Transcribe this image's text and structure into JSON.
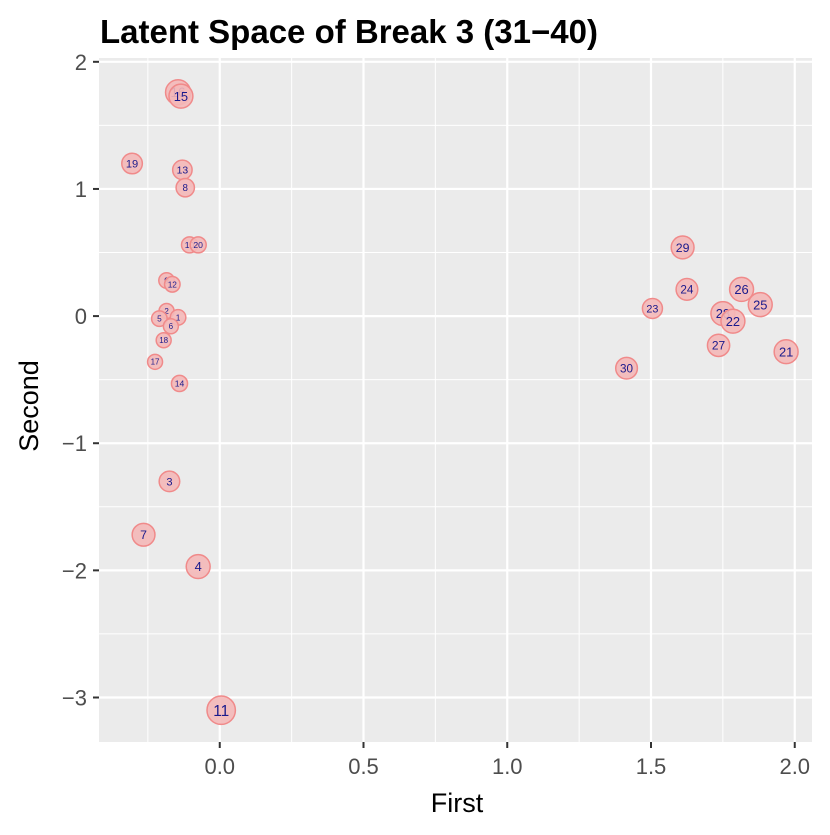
{
  "chart_data": {
    "type": "scatter",
    "title": "Latent Space of Break 3 (31−40)",
    "xlabel": "First",
    "ylabel": "Second",
    "xlim": [
      -0.42,
      2.06
    ],
    "ylim": [
      -3.35,
      2.03
    ],
    "x_ticks": [
      {
        "value": 0.0,
        "label": "0.0"
      },
      {
        "value": 0.5,
        "label": "0.5"
      },
      {
        "value": 1.0,
        "label": "1.0"
      },
      {
        "value": 1.5,
        "label": "1.5"
      },
      {
        "value": 2.0,
        "label": "2.0"
      }
    ],
    "y_ticks": [
      {
        "value": 2,
        "label": "2"
      },
      {
        "value": 1,
        "label": "1"
      },
      {
        "value": 0,
        "label": "0"
      },
      {
        "value": -1,
        "label": "−1"
      },
      {
        "value": -2,
        "label": "−2"
      },
      {
        "value": -3,
        "label": "−3"
      }
    ],
    "grid": true,
    "colors": {
      "panel": "#ebebeb",
      "grid_major": "#ffffff",
      "point_fill": "#f4b8b8",
      "point_stroke": "#f08a8a",
      "label": "#1a1a8c",
      "axis_text": "#4d4d4d",
      "title": "#000000"
    },
    "points": [
      {
        "label": "16",
        "x": -0.145,
        "y": 1.76,
        "size": 1.7
      },
      {
        "label": "15",
        "x": -0.135,
        "y": 1.73,
        "size": 1.6
      },
      {
        "label": "19",
        "x": -0.305,
        "y": 1.2,
        "size": 1.3
      },
      {
        "label": "13",
        "x": -0.13,
        "y": 1.15,
        "size": 1.2
      },
      {
        "label": "8",
        "x": -0.12,
        "y": 1.01,
        "size": 1.1
      },
      {
        "label": "10",
        "x": -0.105,
        "y": 0.56,
        "size": 0.9
      },
      {
        "label": "20",
        "x": -0.075,
        "y": 0.56,
        "size": 0.9
      },
      {
        "label": "9",
        "x": -0.185,
        "y": 0.28,
        "size": 0.85
      },
      {
        "label": "12",
        "x": -0.165,
        "y": 0.25,
        "size": 0.85
      },
      {
        "label": "2",
        "x": -0.185,
        "y": 0.04,
        "size": 0.8
      },
      {
        "label": "1",
        "x": -0.145,
        "y": -0.01,
        "size": 0.85
      },
      {
        "label": "5",
        "x": -0.21,
        "y": -0.02,
        "size": 0.85
      },
      {
        "label": "6",
        "x": -0.17,
        "y": -0.08,
        "size": 0.8
      },
      {
        "label": "18",
        "x": -0.195,
        "y": -0.19,
        "size": 0.8
      },
      {
        "label": "17",
        "x": -0.225,
        "y": -0.36,
        "size": 0.8
      },
      {
        "label": "14",
        "x": -0.14,
        "y": -0.53,
        "size": 0.9
      },
      {
        "label": "3",
        "x": -0.175,
        "y": -1.3,
        "size": 1.3
      },
      {
        "label": "7",
        "x": -0.265,
        "y": -1.72,
        "size": 1.5
      },
      {
        "label": "4",
        "x": -0.075,
        "y": -1.97,
        "size": 1.6
      },
      {
        "label": "11",
        "x": 0.005,
        "y": -3.1,
        "size": 2.0
      },
      {
        "label": "29",
        "x": 1.61,
        "y": 0.54,
        "size": 1.5
      },
      {
        "label": "24",
        "x": 1.625,
        "y": 0.21,
        "size": 1.4
      },
      {
        "label": "26",
        "x": 1.815,
        "y": 0.21,
        "size": 1.6
      },
      {
        "label": "25",
        "x": 1.88,
        "y": 0.09,
        "size": 1.6
      },
      {
        "label": "23",
        "x": 1.505,
        "y": 0.06,
        "size": 1.25
      },
      {
        "label": "28",
        "x": 1.75,
        "y": 0.02,
        "size": 1.6
      },
      {
        "label": "22",
        "x": 1.785,
        "y": -0.04,
        "size": 1.6
      },
      {
        "label": "27",
        "x": 1.735,
        "y": -0.23,
        "size": 1.45
      },
      {
        "label": "21",
        "x": 1.97,
        "y": -0.28,
        "size": 1.6
      },
      {
        "label": "30",
        "x": 1.415,
        "y": -0.41,
        "size": 1.4
      }
    ]
  }
}
